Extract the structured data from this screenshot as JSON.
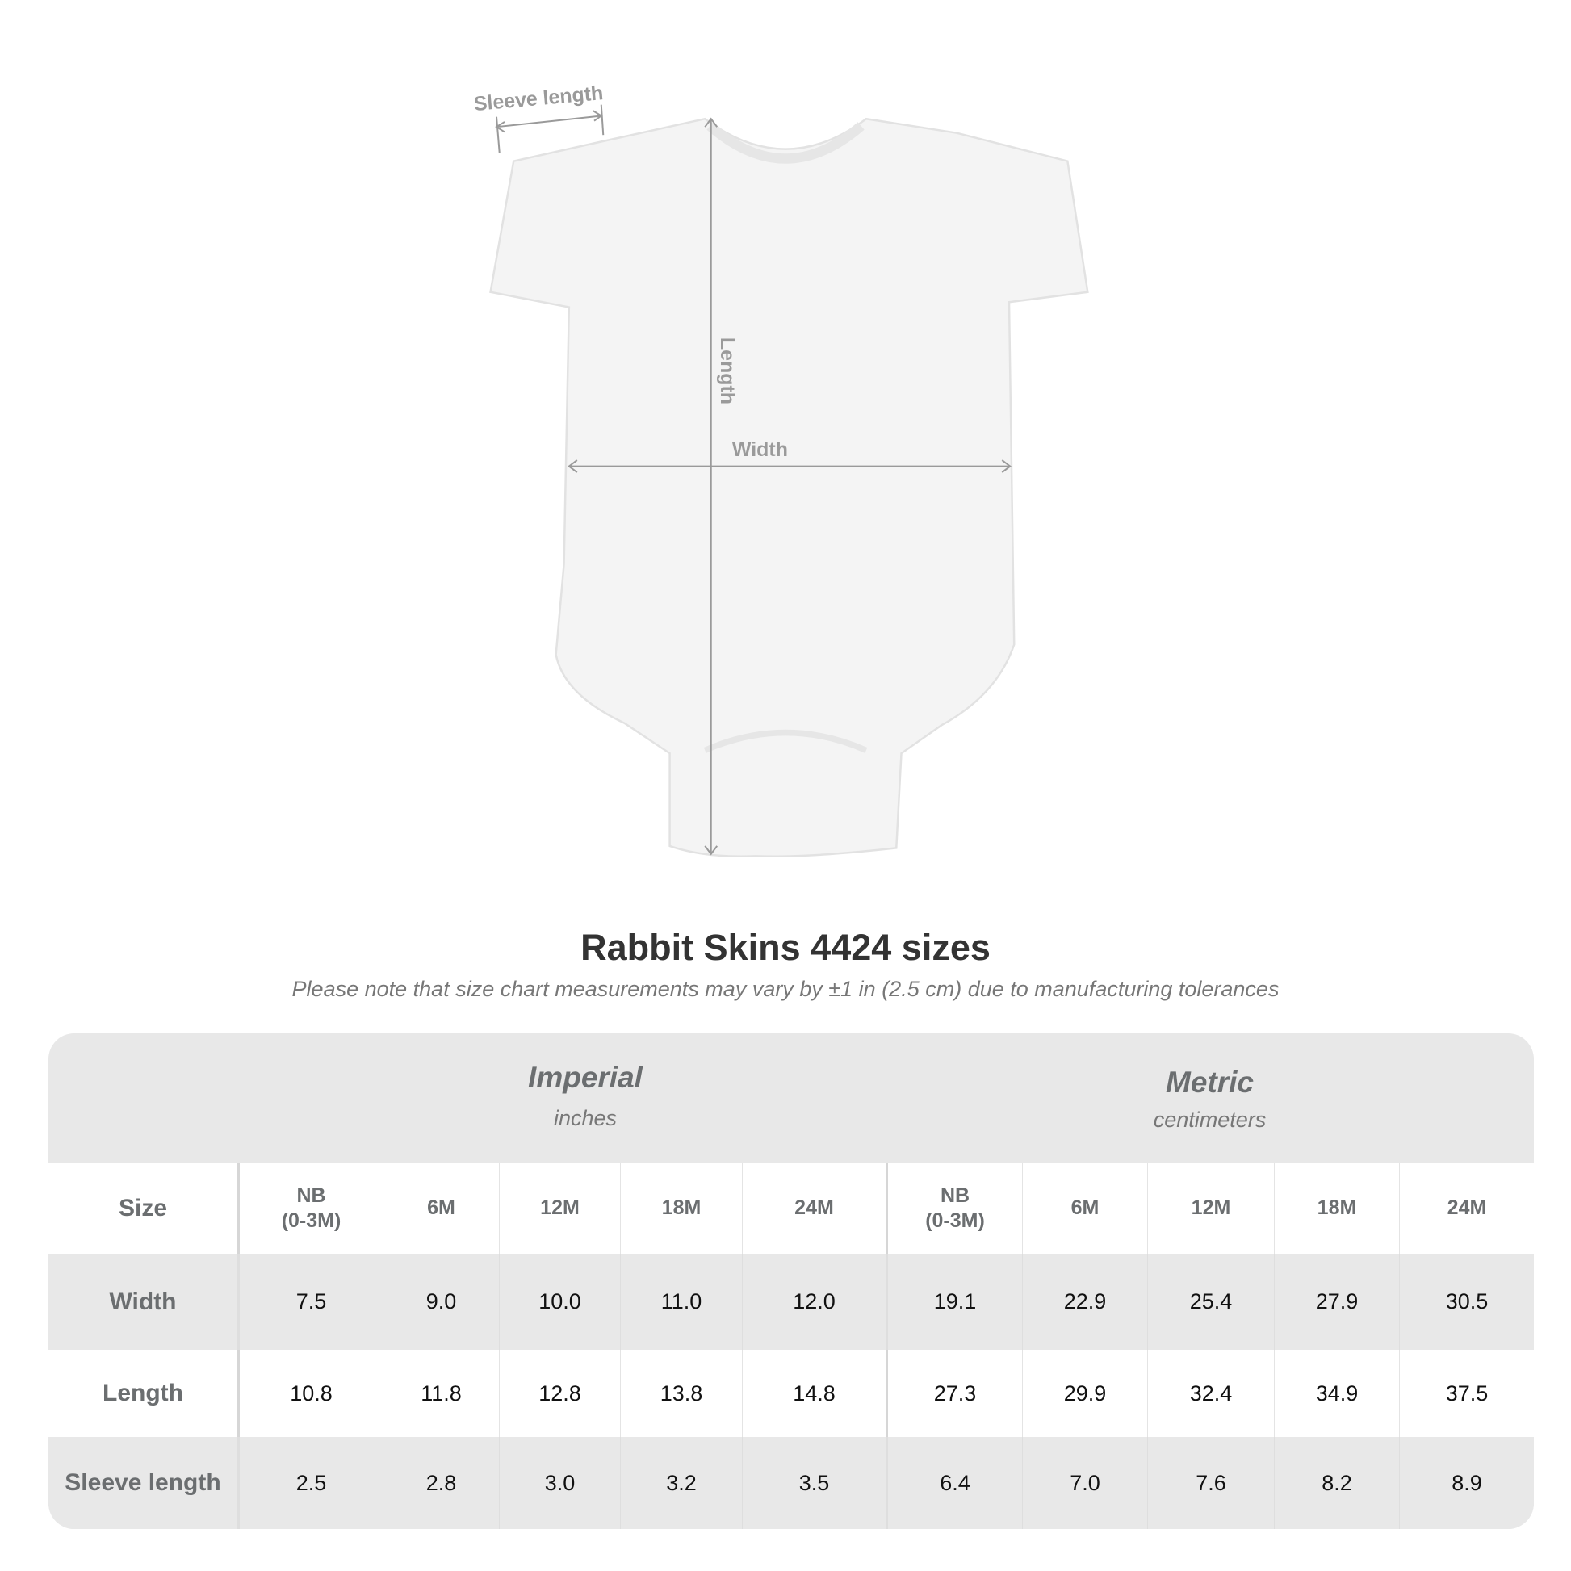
{
  "diagram": {
    "labels": {
      "sleeve": "Sleeve length",
      "length": "Length",
      "width": "Width"
    },
    "colors": {
      "garment": "#f4f4f4",
      "measure": "#9a9a9a"
    }
  },
  "title": "Rabbit Skins 4424 sizes",
  "subtitle": "Please note that size chart measurements may vary by ±1 in (2.5 cm) due to manufacturing tolerances",
  "table": {
    "imperial": {
      "label": "Imperial",
      "unit": "inches"
    },
    "metric": {
      "label": "Metric",
      "unit": "centimeters"
    },
    "size_label": "Size",
    "sizes": [
      "NB\n(0-3M)",
      "6M",
      "12M",
      "18M",
      "24M"
    ],
    "rows": [
      {
        "label": "Width",
        "imperial": [
          "7.5",
          "9.0",
          "10.0",
          "11.0",
          "12.0"
        ],
        "metric": [
          "19.1",
          "22.9",
          "25.4",
          "27.9",
          "30.5"
        ]
      },
      {
        "label": "Length",
        "imperial": [
          "10.8",
          "11.8",
          "12.8",
          "13.8",
          "14.8"
        ],
        "metric": [
          "27.3",
          "29.9",
          "32.4",
          "34.9",
          "37.5"
        ]
      },
      {
        "label": "Sleeve length",
        "imperial": [
          "2.5",
          "2.8",
          "3.0",
          "3.2",
          "3.5"
        ],
        "metric": [
          "6.4",
          "7.0",
          "7.6",
          "8.2",
          "8.9"
        ]
      }
    ]
  }
}
